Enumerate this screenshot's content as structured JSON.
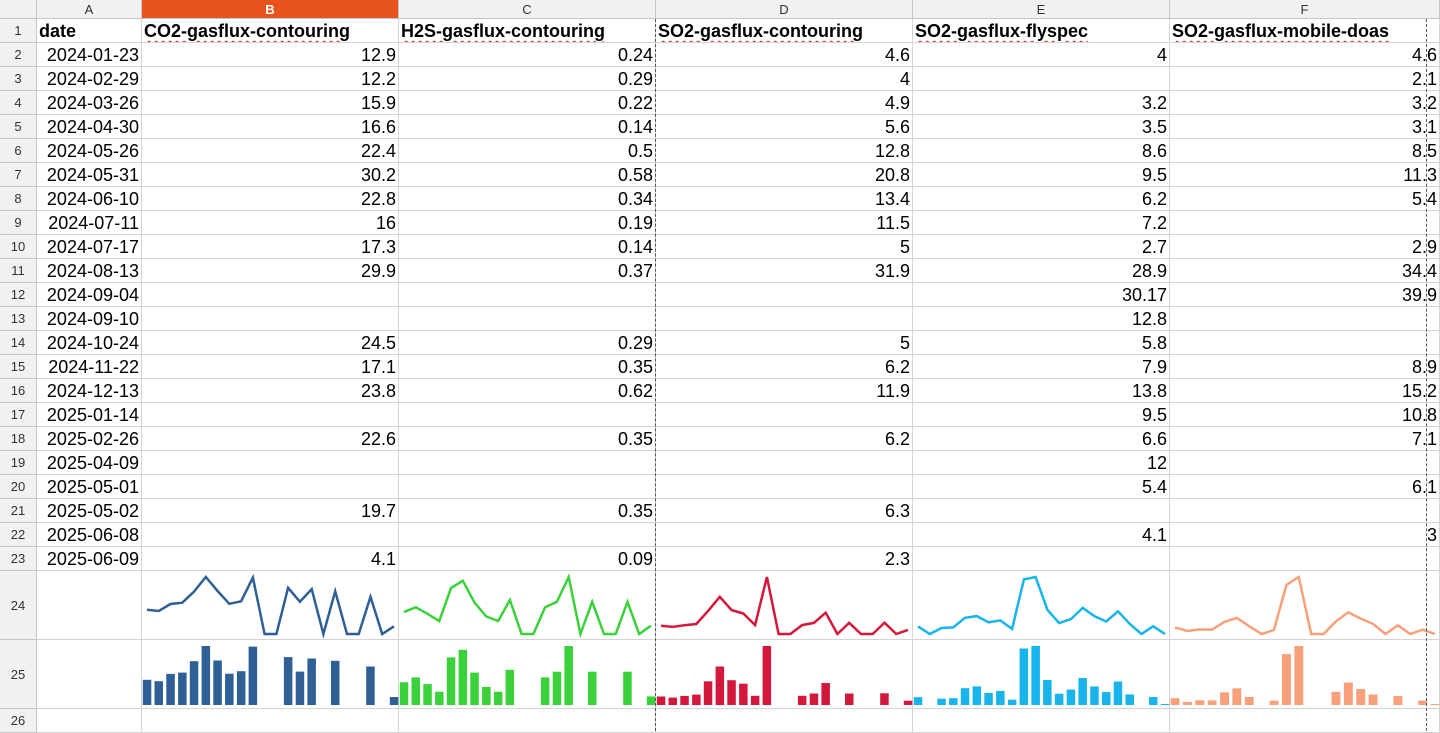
{
  "columns": [
    "A",
    "B",
    "C",
    "D",
    "E",
    "F"
  ],
  "selected_column": "B",
  "headers": [
    "date",
    "CO2-gasflux-contouring",
    "H2S-gasflux-contouring",
    "SO2-gasflux-contouring",
    "SO2-gasflux-flyspec",
    "SO2-gasflux-mobile-doas"
  ],
  "rows": [
    [
      "2024-01-23",
      "12.9",
      "0.24",
      "4.6",
      "4",
      "4.6"
    ],
    [
      "2024-02-29",
      "12.2",
      "0.29",
      "4",
      "",
      "2.1"
    ],
    [
      "2024-03-26",
      "15.9",
      "0.22",
      "4.9",
      "3.2",
      "3.2"
    ],
    [
      "2024-04-30",
      "16.6",
      "0.14",
      "5.6",
      "3.5",
      "3.1"
    ],
    [
      "2024-05-26",
      "22.4",
      "0.5",
      "12.8",
      "8.6",
      "8.5"
    ],
    [
      "2024-05-31",
      "30.2",
      "0.58",
      "20.8",
      "9.5",
      "11.3"
    ],
    [
      "2024-06-10",
      "22.8",
      "0.34",
      "13.4",
      "6.2",
      "5.4"
    ],
    [
      "2024-07-11",
      "16",
      "0.19",
      "11.5",
      "7.2",
      ""
    ],
    [
      "2024-07-17",
      "17.3",
      "0.14",
      "5",
      "2.7",
      "2.9"
    ],
    [
      "2024-08-13",
      "29.9",
      "0.37",
      "31.9",
      "28.9",
      "34.4"
    ],
    [
      "2024-09-04",
      "",
      "",
      "",
      "30.17",
      "39.9"
    ],
    [
      "2024-09-10",
      "",
      "",
      "",
      "12.8",
      ""
    ],
    [
      "2024-10-24",
      "24.5",
      "0.29",
      "5",
      "5.8",
      ""
    ],
    [
      "2024-11-22",
      "17.1",
      "0.35",
      "6.2",
      "7.9",
      "8.9"
    ],
    [
      "2024-12-13",
      "23.8",
      "0.62",
      "11.9",
      "13.8",
      "15.2"
    ],
    [
      "2025-01-14",
      "",
      "",
      "",
      "9.5",
      "10.8"
    ],
    [
      "2025-02-26",
      "22.6",
      "0.35",
      "6.2",
      "6.6",
      "7.1"
    ],
    [
      "2025-04-09",
      "",
      "",
      "",
      "12",
      ""
    ],
    [
      "2025-05-01",
      "",
      "",
      "",
      "5.4",
      "6.1"
    ],
    [
      "2025-05-02",
      "19.7",
      "0.35",
      "6.3",
      "",
      ""
    ],
    [
      "2025-06-08",
      "",
      "",
      "",
      "4.1",
      "3"
    ],
    [
      "2025-06-09",
      "4.1",
      "0.09",
      "2.3",
      "",
      ""
    ]
  ],
  "row_numbers": [
    "1",
    "2",
    "3",
    "4",
    "5",
    "6",
    "7",
    "8",
    "9",
    "10",
    "11",
    "12",
    "13",
    "14",
    "15",
    "16",
    "17",
    "18",
    "19",
    "20",
    "21",
    "22",
    "23",
    "24",
    "25",
    "26"
  ],
  "spark_colors": [
    "#2e5f95",
    "#3ad13a",
    "#d3183c",
    "#18b4ec",
    "#f7a07a"
  ]
}
